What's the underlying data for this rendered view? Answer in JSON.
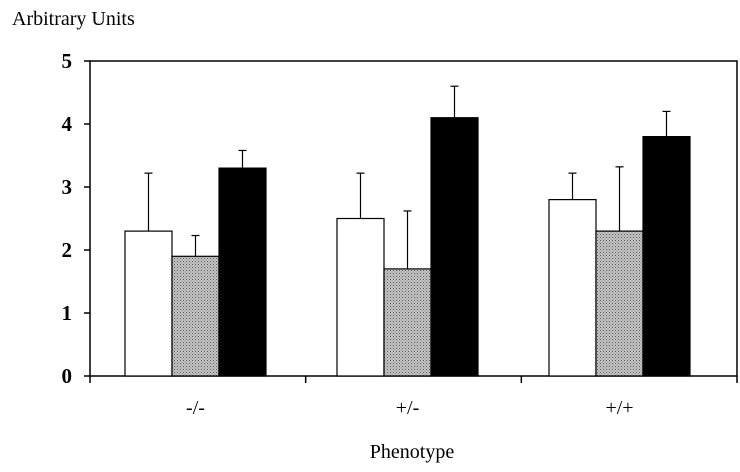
{
  "chart_data": {
    "type": "bar",
    "title": "",
    "ylabel": "Arbitrary Units",
    "xlabel": "Phenotype",
    "categories": [
      "-/-",
      "+/-",
      "+/+"
    ],
    "ylim": [
      0,
      5
    ],
    "yticks": [
      0,
      1,
      2,
      3,
      4,
      5
    ],
    "grid": false,
    "legend": "none",
    "series": [
      {
        "values": [
          2.3,
          2.5,
          2.8
        ],
        "errors": [
          0.92,
          0.72,
          0.42
        ],
        "color": "#ffffff"
      },
      {
        "values": [
          1.9,
          1.7,
          2.3
        ],
        "errors": [
          0.33,
          0.92,
          1.02
        ],
        "color": "#b0b0b0"
      },
      {
        "values": [
          3.3,
          4.1,
          3.8
        ],
        "errors": [
          0.28,
          0.5,
          0.4
        ],
        "color": "#000000"
      }
    ]
  }
}
